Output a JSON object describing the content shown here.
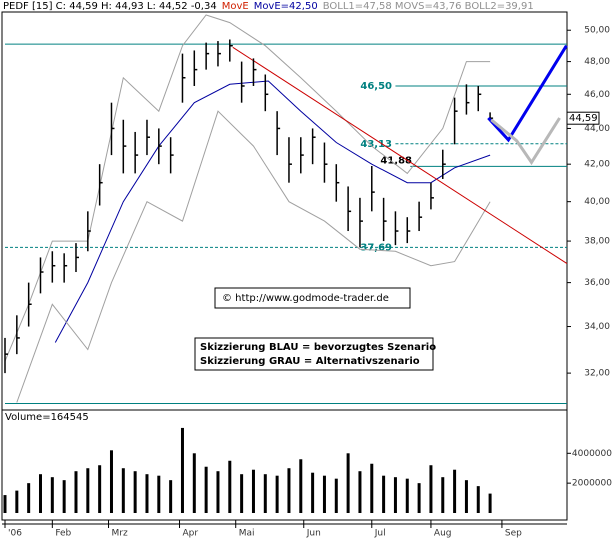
{
  "chart_data": [
    {
      "type": "candlestick",
      "header": [
        {
          "text": "PEDF [15] C: 44,59 H: 44,93 L: 44,52 -0,34",
          "color": "#000000"
        },
        {
          "text": "MovE",
          "color": "#d02000"
        },
        {
          "text": "MovE=42,50",
          "color": "#0000a0"
        },
        {
          "text": "BOLL1=47,58 MOVS=43,76 BOLL2=39,91",
          "color": "#909090"
        }
      ],
      "log_scale": true,
      "xlim": [
        0,
        190
      ],
      "xticks": [
        {
          "value": 0,
          "label": "'06"
        },
        {
          "value": 16,
          "label": "Feb"
        },
        {
          "value": 35,
          "label": "Mrz"
        },
        {
          "value": 59,
          "label": "Apr"
        },
        {
          "value": 78,
          "label": "Mai"
        },
        {
          "value": 101,
          "label": "Jun"
        },
        {
          "value": 124,
          "label": "Jul"
        },
        {
          "value": 144,
          "label": "Aug"
        },
        {
          "value": 168,
          "label": "Sep"
        }
      ],
      "ylim": [
        30.5,
        51.2
      ],
      "yticks": [
        {
          "value": 32,
          "label": "32,00"
        },
        {
          "value": 34,
          "label": "34,00"
        },
        {
          "value": 36,
          "label": "36,00"
        },
        {
          "value": 38,
          "label": "38,00"
        },
        {
          "value": 40,
          "label": "40,00"
        },
        {
          "value": 42,
          "label": "42,00"
        },
        {
          "value": 44,
          "label": "44,00"
        },
        {
          "value": 46,
          "label": "46,00"
        },
        {
          "value": 48,
          "label": "48,00"
        },
        {
          "value": 50,
          "label": "50,00"
        }
      ],
      "color": "#000000",
      "x": [
        0,
        4,
        8,
        12,
        16,
        20,
        24,
        28,
        32,
        36,
        40,
        44,
        48,
        52,
        56,
        60,
        64,
        68,
        72,
        76,
        80,
        84,
        88,
        92,
        96,
        100,
        104,
        108,
        112,
        116,
        120,
        124,
        128,
        132,
        136,
        140,
        144,
        148,
        152,
        156,
        160,
        164
      ],
      "high": [
        33.5,
        34.5,
        36,
        37.2,
        37.5,
        37.4,
        37.9,
        39.5,
        42,
        45.5,
        44.5,
        43.8,
        44.5,
        44,
        43.5,
        48.5,
        48.7,
        49.2,
        49.3,
        49.4,
        48,
        48.2,
        47.2,
        45,
        43.5,
        43.5,
        44,
        43.2,
        42,
        40.8,
        40.2,
        41.9,
        40.2,
        39.5,
        39.2,
        40,
        41,
        42.8,
        45.8,
        46.6,
        46.5,
        44.93
      ],
      "low": [
        32,
        32.8,
        34,
        35.5,
        36,
        36,
        36.5,
        37.5,
        39.8,
        42.5,
        41.5,
        41.5,
        42.5,
        42,
        41.5,
        45.5,
        46.5,
        47.5,
        47.7,
        48,
        45.5,
        46.5,
        45,
        42.5,
        41,
        41.5,
        42,
        41,
        40,
        38.5,
        37.69,
        39.5,
        38,
        37.8,
        37.9,
        38.5,
        39.6,
        41.2,
        43.1,
        44.8,
        45,
        44.52
      ],
      "close": [
        32.8,
        33.5,
        35,
        36.5,
        36.8,
        36.8,
        37.2,
        38.5,
        41,
        44,
        43,
        42.5,
        43.5,
        43,
        42.5,
        47,
        47.5,
        48.5,
        48.5,
        49,
        46.5,
        47.5,
        46,
        44,
        42,
        42.5,
        43.5,
        42,
        41,
        39.5,
        39,
        40.5,
        39,
        38.5,
        38.5,
        39.2,
        40.2,
        42,
        45,
        45.5,
        46,
        44.59
      ],
      "series": [
        {
          "color": "#0000a0",
          "x": [
            17,
            28,
            40,
            52,
            64,
            76,
            89,
            100,
            112,
            124,
            136,
            144,
            152,
            164
          ],
          "values": [
            33.3,
            36,
            40,
            43,
            45.5,
            46.6,
            46.8,
            45,
            43.2,
            42,
            41,
            41,
            41.8,
            42.5
          ]
        },
        {
          "color": "#a0a0a0",
          "x": [
            0,
            8,
            16,
            28,
            40,
            52,
            60,
            68,
            76,
            88,
            100,
            112,
            124,
            136,
            148,
            156,
            164
          ],
          "values": [
            32.5,
            35,
            38,
            38,
            47,
            45,
            49,
            51,
            50.5,
            49,
            47,
            45,
            43,
            41.5,
            44,
            48,
            48
          ]
        },
        {
          "color": "#a0a0a0",
          "x": [
            4,
            16,
            28,
            36,
            48,
            60,
            72,
            84,
            96,
            108,
            120,
            132,
            144,
            152,
            164
          ],
          "values": [
            30.8,
            35,
            33,
            36,
            40,
            39,
            45,
            43,
            40,
            39,
            37.6,
            37.5,
            36.8,
            37,
            40
          ]
        }
      ],
      "levels": [
        {
          "value": 49.1,
          "x": [
            0,
            190
          ],
          "color": "#008080",
          "dashed": false
        },
        {
          "value": 46.5,
          "label": "46,50",
          "x": [
            132,
            190
          ],
          "color": "#008080",
          "dashed": false
        },
        {
          "value": 43.13,
          "label": "43,13",
          "x": [
            132,
            190
          ],
          "color": "#008080",
          "dashed": true
        },
        {
          "value": 41.88,
          "label": "41,88",
          "x": [
            137,
            190
          ],
          "color": "#008080",
          "dashed": false,
          "label_color": "#000000"
        },
        {
          "value": 37.69,
          "label": "37,69",
          "x": [
            0,
            190
          ],
          "color": "#008080",
          "dashed": true
        },
        {
          "value": 30.76,
          "x": [
            0,
            190
          ],
          "color": "#008080",
          "dashed": false
        }
      ],
      "trendline": {
        "x": [
          77,
          190
        ],
        "values": [
          48.9,
          36.9
        ],
        "color": "#cc0000"
      },
      "scenarios": [
        {
          "color": "#0000ee",
          "x": [
            163.4,
            170.2,
            189.8
          ],
          "values": [
            44.6,
            43.35,
            49
          ]
        },
        {
          "color": "#b8b8b8",
          "x": [
            164.4,
            173,
            178,
            187.5
          ],
          "values": [
            44.5,
            43.3,
            42.1,
            44.6
          ]
        }
      ],
      "last_price": {
        "value": 44.59,
        "label": "44,59"
      },
      "copyright": "© http://www.godmode-trader.de",
      "notes": [
        "Skizzierung BLAU = bevorzugtes Szenario",
        "Skizzierung GRAU = Alternativszenario"
      ]
    },
    {
      "type": "bar",
      "title": "Volume=164545",
      "color": "#000000",
      "xlim": [
        0,
        190
      ],
      "ylim": [
        0,
        6700000
      ],
      "yticks": [
        2000000,
        4000000
      ],
      "x": [
        0,
        4,
        8,
        12,
        16,
        20,
        24,
        28,
        32,
        36,
        40,
        44,
        48,
        52,
        56,
        60,
        64,
        68,
        72,
        76,
        80,
        84,
        88,
        92,
        96,
        100,
        104,
        108,
        112,
        116,
        120,
        124,
        128,
        132,
        136,
        140,
        144,
        148,
        152,
        156,
        160,
        164
      ],
      "values": [
        1200000,
        1500000,
        2000000,
        2600000,
        2400000,
        2200000,
        2800000,
        3000000,
        3200000,
        4200000,
        3000000,
        2800000,
        2600000,
        2500000,
        2200000,
        5700000,
        4000000,
        3100000,
        2800000,
        3500000,
        2600000,
        2900000,
        2600000,
        2500000,
        3000000,
        3600000,
        2700000,
        2500000,
        2300000,
        4000000,
        2800000,
        3300000,
        2500000,
        2400000,
        2300000,
        2000000,
        3200000,
        2400000,
        2900000,
        2200000,
        1800000,
        1300000
      ]
    }
  ]
}
